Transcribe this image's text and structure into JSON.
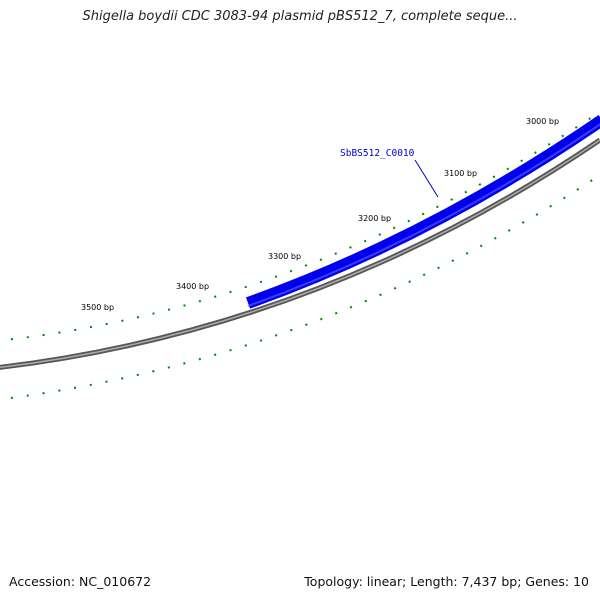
{
  "title": "Shigella boydii CDC 3083-94 plasmid pBS512_7, complete seque...",
  "footer": {
    "accession": "Accession: NC_010672",
    "summary": "Topology: linear; Length: 7,437 bp; Genes: 10"
  },
  "ticks": [
    {
      "label": "3000 bp"
    },
    {
      "label": "3100 bp"
    },
    {
      "label": "3200 bp"
    },
    {
      "label": "3300 bp"
    },
    {
      "label": "3400 bp"
    },
    {
      "label": "3500 bp"
    }
  ],
  "gene": {
    "name": "SbBS512_C0010",
    "color": "#0000ee"
  },
  "colors": {
    "backbone": "#888888",
    "ticks": "#008800",
    "label_line": "#0000cc"
  }
}
